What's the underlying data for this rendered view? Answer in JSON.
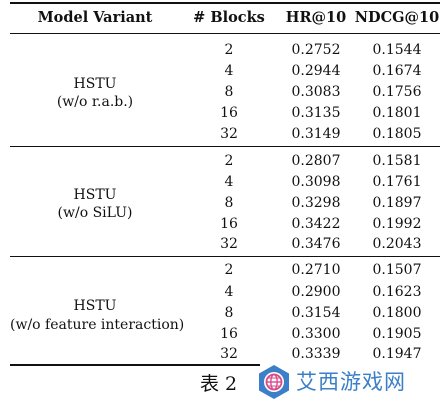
{
  "table": {
    "headers": [
      "Model Variant",
      "# Blocks",
      "HR@10",
      "NDCG@10"
    ],
    "groups": [
      {
        "model_line1": "HSTU",
        "model_line2": "(w/o r.a.b.)",
        "rows": [
          [
            "2",
            "0.2752",
            "0.1544"
          ],
          [
            "4",
            "0.2944",
            "0.1674"
          ],
          [
            "8",
            "0.3083",
            "0.1756"
          ],
          [
            "16",
            "0.3135",
            "0.1801"
          ],
          [
            "32",
            "0.3149",
            "0.1805"
          ]
        ]
      },
      {
        "model_line1": "HSTU",
        "model_line2": "(w/o SiLU)",
        "rows": [
          [
            "2",
            "0.2807",
            "0.1581"
          ],
          [
            "4",
            "0.3098",
            "0.1761"
          ],
          [
            "8",
            "0.3298",
            "0.1897"
          ],
          [
            "16",
            "0.3422",
            "0.1992"
          ],
          [
            "32",
            "0.3476",
            "0.2043"
          ]
        ]
      },
      {
        "model_line1": "HSTU",
        "model_line2": "(w/o feature interaction)",
        "rows": [
          [
            "2",
            "0.2710",
            "0.1507"
          ],
          [
            "4",
            "0.2900",
            "0.1623"
          ],
          [
            "8",
            "0.3154",
            "0.1800"
          ],
          [
            "16",
            "0.3300",
            "0.1905"
          ],
          [
            "32",
            "0.3339",
            "0.1947"
          ]
        ]
      }
    ]
  },
  "caption": "表 2",
  "watermark": {
    "text": "艾西游戏网",
    "icon": "globe-logo-icon",
    "color": "#3a7fc8"
  }
}
